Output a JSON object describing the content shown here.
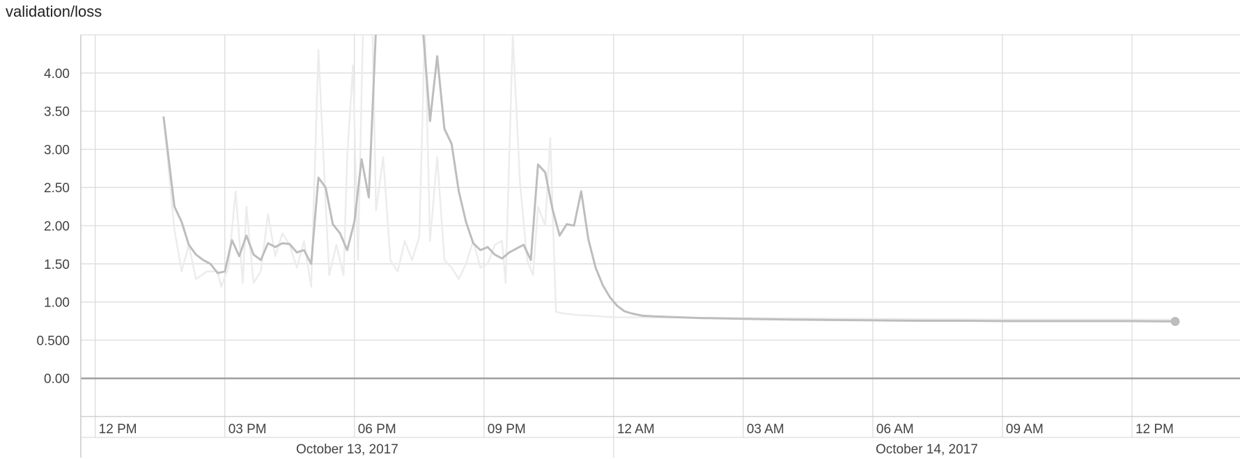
{
  "chart_data": {
    "type": "line",
    "title": "validation/loss",
    "xlabel": "",
    "ylabel": "",
    "x_axis": {
      "type": "time",
      "range": [
        "2017-10-13T11:40",
        "2017-10-14T14:30"
      ],
      "ticks": [
        {
          "t": "2017-10-13T12:00",
          "label": "12 PM"
        },
        {
          "t": "2017-10-13T15:00",
          "label": "03 PM"
        },
        {
          "t": "2017-10-13T18:00",
          "label": "06 PM"
        },
        {
          "t": "2017-10-13T21:00",
          "label": "09 PM"
        },
        {
          "t": "2017-10-14T00:00",
          "label": "12 AM"
        },
        {
          "t": "2017-10-14T03:00",
          "label": "03 AM"
        },
        {
          "t": "2017-10-14T06:00",
          "label": "06 AM"
        },
        {
          "t": "2017-10-14T09:00",
          "label": "09 AM"
        },
        {
          "t": "2017-10-14T12:00",
          "label": "12 PM"
        }
      ],
      "date_labels": [
        {
          "label": "October 13, 2017",
          "from": "2017-10-13T11:40",
          "to": "2017-10-14T00:00"
        },
        {
          "label": "October 14, 2017",
          "from": "2017-10-14T00:00",
          "to": "2017-10-14T14:30"
        }
      ]
    },
    "y_axis": {
      "range": [
        -0.5,
        4.5
      ],
      "ticks": [
        0,
        0.5,
        1,
        1.5,
        2,
        2.5,
        3,
        3.5,
        4
      ],
      "tick_labels": [
        "0.00",
        "0.500",
        "1.00",
        "1.50",
        "2.00",
        "2.50",
        "3.00",
        "3.50",
        "4.00"
      ]
    },
    "grid": true,
    "legend": "none",
    "series": [
      {
        "role": "raw",
        "color": "#ececec",
        "points": [
          [
            "2017-10-13T13:35",
            3.42
          ],
          [
            "2017-10-13T13:50",
            1.95
          ],
          [
            "2017-10-13T14:00",
            1.4
          ],
          [
            "2017-10-13T14:10",
            1.75
          ],
          [
            "2017-10-13T14:20",
            1.3
          ],
          [
            "2017-10-13T14:35",
            1.4
          ],
          [
            "2017-10-13T14:50",
            1.4
          ],
          [
            "2017-10-13T14:55",
            1.2
          ],
          [
            "2017-10-13T15:05",
            1.45
          ],
          [
            "2017-10-13T15:15",
            2.45
          ],
          [
            "2017-10-13T15:25",
            1.25
          ],
          [
            "2017-10-13T15:30",
            2.25
          ],
          [
            "2017-10-13T15:40",
            1.25
          ],
          [
            "2017-10-13T15:50",
            1.4
          ],
          [
            "2017-10-13T16:00",
            2.15
          ],
          [
            "2017-10-13T16:10",
            1.6
          ],
          [
            "2017-10-13T16:20",
            1.9
          ],
          [
            "2017-10-13T16:30",
            1.75
          ],
          [
            "2017-10-13T16:40",
            1.45
          ],
          [
            "2017-10-13T16:50",
            1.8
          ],
          [
            "2017-10-13T17:00",
            1.2
          ],
          [
            "2017-10-13T17:10",
            4.3
          ],
          [
            "2017-10-13T17:20",
            2.3
          ],
          [
            "2017-10-13T17:25",
            1.35
          ],
          [
            "2017-10-13T17:35",
            1.75
          ],
          [
            "2017-10-13T17:45",
            1.35
          ],
          [
            "2017-10-13T17:50",
            2.9
          ],
          [
            "2017-10-13T17:58",
            4.1
          ],
          [
            "2017-10-13T18:05",
            1.55
          ],
          [
            "2017-10-13T18:12",
            4.6
          ],
          [
            "2017-10-13T18:25",
            4.6
          ],
          [
            "2017-10-13T18:30",
            2.2
          ],
          [
            "2017-10-13T18:40",
            2.9
          ],
          [
            "2017-10-13T18:50",
            1.55
          ],
          [
            "2017-10-13T19:00",
            1.4
          ],
          [
            "2017-10-13T19:10",
            1.8
          ],
          [
            "2017-10-13T19:20",
            1.55
          ],
          [
            "2017-10-13T19:30",
            1.85
          ],
          [
            "2017-10-13T19:38",
            4.6
          ],
          [
            "2017-10-13T19:45",
            1.8
          ],
          [
            "2017-10-13T19:55",
            2.9
          ],
          [
            "2017-10-13T20:05",
            1.55
          ],
          [
            "2017-10-13T20:15",
            1.45
          ],
          [
            "2017-10-13T20:25",
            1.3
          ],
          [
            "2017-10-13T20:35",
            1.5
          ],
          [
            "2017-10-13T20:45",
            1.8
          ],
          [
            "2017-10-13T20:55",
            1.45
          ],
          [
            "2017-10-13T21:05",
            1.5
          ],
          [
            "2017-10-13T21:15",
            1.75
          ],
          [
            "2017-10-13T21:25",
            1.8
          ],
          [
            "2017-10-13T21:30",
            1.25
          ],
          [
            "2017-10-13T21:40",
            4.5
          ],
          [
            "2017-10-13T21:50",
            2.55
          ],
          [
            "2017-10-13T22:00",
            1.55
          ],
          [
            "2017-10-13T22:08",
            1.35
          ],
          [
            "2017-10-13T22:15",
            2.25
          ],
          [
            "2017-10-13T22:25",
            2.0
          ],
          [
            "2017-10-13T22:32",
            3.15
          ],
          [
            "2017-10-13T22:40",
            0.87
          ],
          [
            "2017-10-13T22:50",
            0.85
          ],
          [
            "2017-10-13T23:10",
            0.83
          ],
          [
            "2017-10-13T23:30",
            0.82
          ],
          [
            "2017-10-14T00:00",
            0.8
          ],
          [
            "2017-10-14T03:00",
            0.79
          ],
          [
            "2017-10-14T06:00",
            0.78
          ],
          [
            "2017-10-14T09:00",
            0.77
          ],
          [
            "2017-10-14T12:00",
            0.77
          ],
          [
            "2017-10-14T13:00",
            0.77
          ]
        ]
      },
      {
        "role": "smoothed",
        "color": "#bdbdbd",
        "points": [
          [
            "2017-10-13T13:35",
            3.42
          ],
          [
            "2017-10-13T13:50",
            2.25
          ],
          [
            "2017-10-13T14:00",
            2.05
          ],
          [
            "2017-10-13T14:10",
            1.75
          ],
          [
            "2017-10-13T14:20",
            1.62
          ],
          [
            "2017-10-13T14:30",
            1.55
          ],
          [
            "2017-10-13T14:40",
            1.5
          ],
          [
            "2017-10-13T14:50",
            1.38
          ],
          [
            "2017-10-13T15:00",
            1.4
          ],
          [
            "2017-10-13T15:10",
            1.81
          ],
          [
            "2017-10-13T15:20",
            1.6
          ],
          [
            "2017-10-13T15:30",
            1.87
          ],
          [
            "2017-10-13T15:40",
            1.62
          ],
          [
            "2017-10-13T15:50",
            1.55
          ],
          [
            "2017-10-13T16:00",
            1.77
          ],
          [
            "2017-10-13T16:10",
            1.72
          ],
          [
            "2017-10-13T16:20",
            1.77
          ],
          [
            "2017-10-13T16:30",
            1.76
          ],
          [
            "2017-10-13T16:40",
            1.65
          ],
          [
            "2017-10-13T16:50",
            1.68
          ],
          [
            "2017-10-13T17:00",
            1.5
          ],
          [
            "2017-10-13T17:10",
            2.63
          ],
          [
            "2017-10-13T17:20",
            2.5
          ],
          [
            "2017-10-13T17:30",
            2.02
          ],
          [
            "2017-10-13T17:40",
            1.9
          ],
          [
            "2017-10-13T17:50",
            1.68
          ],
          [
            "2017-10-13T18:00",
            2.05
          ],
          [
            "2017-10-13T18:10",
            2.87
          ],
          [
            "2017-10-13T18:20",
            2.37
          ],
          [
            "2017-10-13T18:30",
            4.6
          ],
          [
            "2017-10-13T19:35",
            4.6
          ],
          [
            "2017-10-13T19:45",
            3.37
          ],
          [
            "2017-10-13T19:55",
            4.22
          ],
          [
            "2017-10-13T20:05",
            3.27
          ],
          [
            "2017-10-13T20:15",
            3.07
          ],
          [
            "2017-10-13T20:25",
            2.45
          ],
          [
            "2017-10-13T20:35",
            2.05
          ],
          [
            "2017-10-13T20:45",
            1.77
          ],
          [
            "2017-10-13T20:55",
            1.68
          ],
          [
            "2017-10-13T21:05",
            1.72
          ],
          [
            "2017-10-13T21:15",
            1.62
          ],
          [
            "2017-10-13T21:25",
            1.57
          ],
          [
            "2017-10-13T21:35",
            1.65
          ],
          [
            "2017-10-13T21:45",
            1.7
          ],
          [
            "2017-10-13T21:55",
            1.75
          ],
          [
            "2017-10-13T22:05",
            1.55
          ],
          [
            "2017-10-13T22:15",
            2.8
          ],
          [
            "2017-10-13T22:25",
            2.7
          ],
          [
            "2017-10-13T22:35",
            2.22
          ],
          [
            "2017-10-13T22:45",
            1.87
          ],
          [
            "2017-10-13T22:55",
            2.02
          ],
          [
            "2017-10-13T23:05",
            2.0
          ],
          [
            "2017-10-13T23:15",
            2.45
          ],
          [
            "2017-10-13T23:25",
            1.82
          ],
          [
            "2017-10-13T23:35",
            1.45
          ],
          [
            "2017-10-13T23:45",
            1.22
          ],
          [
            "2017-10-13T23:55",
            1.06
          ],
          [
            "2017-10-14T00:05",
            0.95
          ],
          [
            "2017-10-14T00:15",
            0.88
          ],
          [
            "2017-10-14T00:25",
            0.85
          ],
          [
            "2017-10-14T00:40",
            0.82
          ],
          [
            "2017-10-14T01:00",
            0.81
          ],
          [
            "2017-10-14T01:30",
            0.8
          ],
          [
            "2017-10-14T02:00",
            0.79
          ],
          [
            "2017-10-14T03:00",
            0.78
          ],
          [
            "2017-10-14T04:00",
            0.77
          ],
          [
            "2017-10-14T05:00",
            0.765
          ],
          [
            "2017-10-14T06:00",
            0.76
          ],
          [
            "2017-10-14T07:00",
            0.755
          ],
          [
            "2017-10-14T08:00",
            0.755
          ],
          [
            "2017-10-14T09:00",
            0.75
          ],
          [
            "2017-10-14T10:00",
            0.75
          ],
          [
            "2017-10-14T11:00",
            0.75
          ],
          [
            "2017-10-14T12:00",
            0.75
          ],
          [
            "2017-10-14T13:00",
            0.745
          ]
        ],
        "end_marker": true
      }
    ]
  }
}
